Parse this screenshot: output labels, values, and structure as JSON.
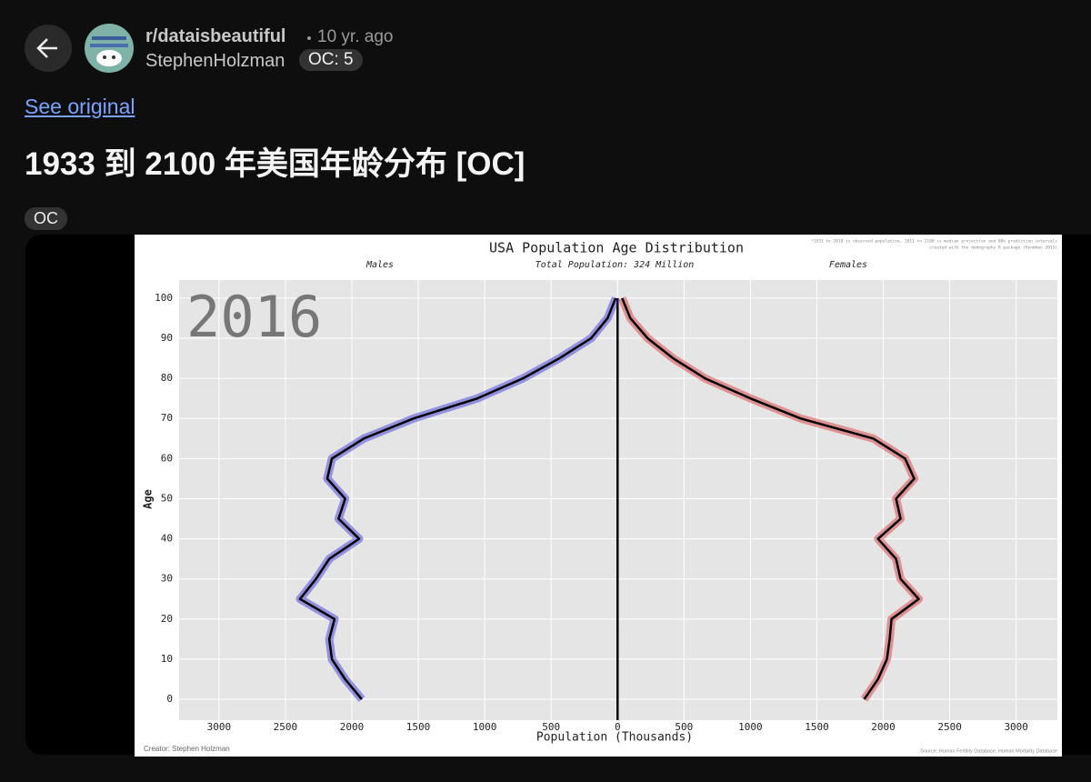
{
  "post": {
    "subreddit": "r/dataisbeautiful",
    "time": "10 yr. ago",
    "author": "StephenHolzman",
    "author_flair": "OC: 5",
    "link": "See original",
    "title": "1933 到 2100 年美国年龄分布 [OC]",
    "tag": "OC"
  },
  "chart_data": {
    "type": "pyramid",
    "title": "USA Population Age Distribution",
    "subtitle": "Total Population: 324 Million",
    "note": [
      "*1933 to 2010 is observed population, 2011 to 2100 is median projection and 80% prediction intervals",
      "created with the demography R package (Hyndman 2015)"
    ],
    "annotation": "2016",
    "credit": "Creator: Stephen Holzman",
    "source": "Source: Human Fertility Database, Human Mortality Database",
    "x_label": "Population (Thousands)",
    "y_label": "Age",
    "y": [
      0,
      5,
      10,
      15,
      20,
      25,
      30,
      35,
      40,
      45,
      50,
      55,
      60,
      65,
      70,
      75,
      80,
      85,
      90,
      95,
      100
    ],
    "series": [
      {
        "name": "Males",
        "color": "#000000",
        "band_color": "#2b2bd6",
        "values": [
          1925,
          2050,
          2150,
          2170,
          2130,
          2390,
          2270,
          2170,
          1945,
          2100,
          2050,
          2185,
          2150,
          1910,
          1535,
          1055,
          712,
          438,
          199,
          75,
          14
        ]
      },
      {
        "name": "Females",
        "color": "#000000",
        "band_color": "#d62b2b",
        "values": [
          1856,
          1960,
          2027,
          2048,
          2062,
          2267,
          2130,
          2096,
          1960,
          2130,
          2096,
          2233,
          2164,
          1925,
          1377,
          1000,
          658,
          418,
          226,
          96,
          34
        ]
      }
    ],
    "xlim": [
      -3300,
      3310
    ],
    "ylim": [
      -5.2,
      104.5
    ],
    "xticks": [
      {
        "value": -3000,
        "label": "3000"
      },
      {
        "value": -2500,
        "label": "2500"
      },
      {
        "value": -2000,
        "label": "2000"
      },
      {
        "value": -1500,
        "label": "1500"
      },
      {
        "value": -1000,
        "label": "1000"
      },
      {
        "value": -500,
        "label": "500"
      },
      0,
      500,
      1000,
      1500,
      2000,
      2500,
      3000
    ],
    "yticks": [
      0,
      10,
      20,
      30,
      40,
      50,
      60,
      70,
      80,
      90,
      100
    ],
    "grid": true
  }
}
